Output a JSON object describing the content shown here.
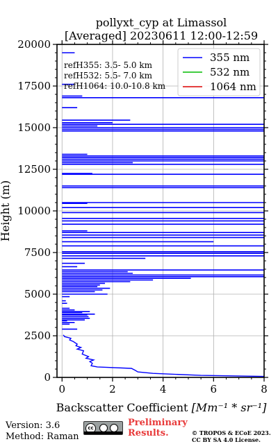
{
  "chart_data": {
    "type": "line",
    "title": "pollyxt_cyp at Limassol",
    "subtitle": "[Averaged] 20230611 12:00-12:59",
    "xlabel_text": "Backscatter Coefficient ",
    "xlabel_math": "[Mm⁻¹ * sr⁻¹]",
    "ylabel": "Height (m)",
    "xlim": [
      -0.2,
      8
    ],
    "ylim": [
      0,
      20000
    ],
    "xticks": [
      0,
      2,
      4,
      6,
      8
    ],
    "yticks": [
      0,
      2500,
      5000,
      7500,
      10000,
      12500,
      15000,
      17500,
      20000
    ],
    "grid": true,
    "legend_position": "top-right",
    "ref_labels": [
      "refH355:  3.5- 5.0 km",
      "refH532:  5.5- 7.0 km",
      "refH1064: 10.0-10.8 km"
    ],
    "series": [
      {
        "name": "355 nm",
        "color": "#0000ff",
        "profile": [
          [
            8.0,
            60
          ],
          [
            5.5,
            120
          ],
          [
            3.6,
            240
          ],
          [
            3.0,
            330
          ],
          [
            2.9,
            420
          ],
          [
            2.75,
            540
          ],
          [
            1.4,
            630
          ],
          [
            1.15,
            700
          ],
          [
            1.2,
            850
          ],
          [
            1.1,
            950
          ],
          [
            1.25,
            1050
          ],
          [
            0.95,
            1150
          ],
          [
            1.05,
            1250
          ],
          [
            0.8,
            1400
          ],
          [
            0.85,
            1600
          ],
          [
            0.6,
            1700
          ],
          [
            0.75,
            1800
          ],
          [
            0.55,
            1900
          ],
          [
            0.6,
            2000
          ],
          [
            0.45,
            2150
          ],
          [
            0.3,
            2250
          ],
          [
            0.35,
            2350
          ],
          [
            0.1,
            2450
          ],
          [
            0.05,
            2550
          ]
        ],
        "segments": [
          [
            0.0,
            0.6,
            2900
          ],
          [
            0.0,
            0.3,
            3200
          ],
          [
            0.0,
            0.5,
            3300
          ],
          [
            0.0,
            0.2,
            3400
          ],
          [
            0.0,
            0.9,
            3450
          ],
          [
            0.0,
            1.1,
            3550
          ],
          [
            0.0,
            1.05,
            3650
          ],
          [
            0.0,
            1.0,
            3750
          ],
          [
            0.0,
            1.3,
            3800
          ],
          [
            0.0,
            0.8,
            3900
          ],
          [
            0.0,
            1.1,
            3950
          ],
          [
            0.0,
            0.5,
            4050
          ],
          [
            0.0,
            0.3,
            4150
          ],
          [
            0.0,
            0.2,
            4450
          ],
          [
            0.0,
            0.15,
            4600
          ],
          [
            0.0,
            0.3,
            4850
          ],
          [
            0.0,
            1.8,
            5000
          ],
          [
            0.0,
            1.3,
            5150
          ],
          [
            0.0,
            1.6,
            5250
          ],
          [
            0.0,
            1.9,
            5350
          ],
          [
            0.0,
            1.4,
            5450
          ],
          [
            0.0,
            1.5,
            5550
          ],
          [
            0.0,
            1.7,
            5650
          ],
          [
            0.0,
            2.7,
            5750
          ],
          [
            0.0,
            3.6,
            5850
          ],
          [
            0.0,
            5.1,
            5950
          ],
          [
            0.0,
            8.0,
            6050
          ],
          [
            0.0,
            8.0,
            6150
          ],
          [
            0.0,
            2.8,
            6250
          ],
          [
            0.0,
            2.6,
            6350
          ],
          [
            0.0,
            8.0,
            6450
          ],
          [
            0.0,
            0.6,
            6650
          ],
          [
            0.0,
            0.9,
            6850
          ],
          [
            0.0,
            3.3,
            7150
          ],
          [
            0.0,
            8.0,
            7300
          ],
          [
            0.0,
            8.0,
            7450
          ],
          [
            0.0,
            8.0,
            7550
          ],
          [
            0.0,
            8.0,
            7900
          ],
          [
            0.0,
            6.0,
            8150
          ],
          [
            0.0,
            8.0,
            8400
          ],
          [
            0.0,
            8.0,
            8550
          ],
          [
            0.0,
            8.0,
            8700
          ],
          [
            0.0,
            1.0,
            8800
          ],
          [
            0.0,
            8.0,
            9200
          ],
          [
            0.0,
            8.0,
            9400
          ],
          [
            0.0,
            8.0,
            9550
          ],
          [
            0.0,
            8.0,
            9900
          ],
          [
            0.0,
            8.0,
            10200
          ],
          [
            0.0,
            1.0,
            10450
          ],
          [
            0.0,
            8.0,
            10500
          ],
          [
            0.0,
            8.0,
            11400
          ],
          [
            0.0,
            8.0,
            11500
          ],
          [
            0.0,
            8.0,
            12200
          ],
          [
            0.0,
            1.2,
            12250
          ],
          [
            0.0,
            8.0,
            12800
          ],
          [
            0.0,
            2.8,
            12900
          ],
          [
            0.0,
            8.0,
            13000
          ],
          [
            0.0,
            8.0,
            13100
          ],
          [
            0.0,
            8.0,
            13200
          ],
          [
            0.0,
            8.0,
            13300
          ],
          [
            0.0,
            1.0,
            13400
          ],
          [
            0.0,
            8.0,
            14800
          ],
          [
            0.0,
            8.0,
            14900
          ],
          [
            0.0,
            8.0,
            15000
          ],
          [
            0.0,
            1.4,
            15100
          ],
          [
            0.0,
            8.0,
            15200
          ],
          [
            0.0,
            2.0,
            15300
          ],
          [
            0.0,
            2.7,
            15450
          ],
          [
            0.0,
            0.6,
            16200
          ],
          [
            0.0,
            0.8,
            16900
          ],
          [
            0.0,
            8.0,
            16800
          ],
          [
            0.0,
            0.5,
            17600
          ],
          [
            0.0,
            0.5,
            19500
          ]
        ]
      },
      {
        "name": "532 nm",
        "color": "#00bb00",
        "profile": [],
        "segments": []
      },
      {
        "name": "1064 nm",
        "color": "#dd0000",
        "profile": [],
        "segments": []
      }
    ]
  },
  "footer": {
    "version": "Version: 3.6",
    "method": "Method: Raman",
    "preliminary_line1": "Preliminary",
    "preliminary_line2": "Results.",
    "copyright_line1": "© TROPOS & ECoE 2023.",
    "copyright_line2": "CC BY SA 4.0 License."
  },
  "license_badge": {
    "text": "cc",
    "icon": "creative-commons-badge-icon"
  }
}
